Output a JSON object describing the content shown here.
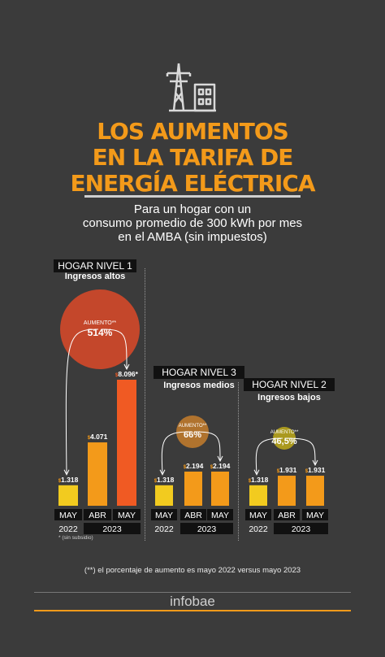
{
  "colors": {
    "background": "#3b3b3b",
    "title": "#f39a1a",
    "bar_2022": "#f2cb1f",
    "bar_abr": "#f39a1a",
    "bar_may_2023_nivel1": "#f05a23",
    "circle_nivel1": "#c4472b",
    "circle_nivel3": "#b0732e",
    "circle_nivel2": "#aa991e",
    "label_box": "#111111"
  },
  "header": {
    "title_lines": [
      "LOS AUMENTOS",
      "EN LA TARIFA DE",
      "ENERGÍA ELÉCTRICA"
    ],
    "subtitle_lines": [
      "Para un hogar con un",
      "consumo promedio de 300 kWh por mes",
      "en el AMBA (sin impuestos)"
    ],
    "icon": "power-tower-and-house-icon"
  },
  "footnote_subsidy": "*  (sin subsidio)",
  "footnote": "(**) el porcentaje de aumento es mayo 2022 versus mayo 2023",
  "brand": "infobae",
  "chart_data": [
    {
      "type": "bar",
      "title": "HOGAR NIVEL 1",
      "subtitle": "Ingresos altos",
      "categories": [
        "MAY",
        "ABR",
        "MAY"
      ],
      "years": [
        "2022",
        "2023"
      ],
      "values": [
        1318,
        4071,
        8096
      ],
      "value_labels": [
        "1.318",
        "4.071",
        "8.096*"
      ],
      "currency": "$",
      "increase_label": "AUMENTO**",
      "increase": "514%"
    },
    {
      "type": "bar",
      "title": "HOGAR NIVEL 3",
      "subtitle": "Ingresos medios",
      "categories": [
        "MAY",
        "ABR",
        "MAY"
      ],
      "years": [
        "2022",
        "2023"
      ],
      "values": [
        1318,
        2194,
        2194
      ],
      "value_labels": [
        "1.318",
        "2.194",
        "2.194"
      ],
      "currency": "$",
      "increase_label": "AUMENTO**",
      "increase": "66%"
    },
    {
      "type": "bar",
      "title": "HOGAR NIVEL 2",
      "subtitle": "Ingresos bajos",
      "categories": [
        "MAY",
        "ABR",
        "MAY"
      ],
      "years": [
        "2022",
        "2023"
      ],
      "values": [
        1318,
        1931,
        1931
      ],
      "value_labels": [
        "1.318",
        "1.931",
        "1.931"
      ],
      "currency": "$",
      "increase_label": "AUMENTO**",
      "increase": "46,5%"
    }
  ]
}
